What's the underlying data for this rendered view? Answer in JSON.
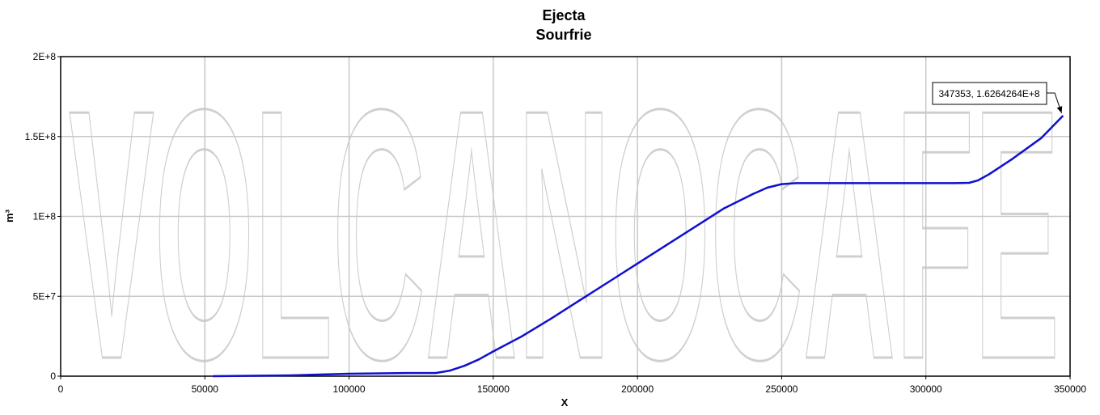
{
  "watermark": "VOLCANOCAFE",
  "chart_data": {
    "type": "line",
    "title": "Ejecta",
    "subtitle": "Sourfrie",
    "xlabel": "X",
    "ylabel": "m³",
    "xlim": [
      0,
      350000
    ],
    "ylim": [
      0,
      200000000
    ],
    "x_ticks": [
      0,
      50000,
      100000,
      150000,
      200000,
      250000,
      300000,
      350000
    ],
    "x_tick_labels": [
      "0",
      "50000",
      "100000",
      "150000",
      "200000",
      "250000",
      "300000",
      "350000"
    ],
    "y_ticks": [
      0,
      50000000,
      100000000,
      150000000,
      200000000
    ],
    "y_tick_labels": [
      "0",
      "5E+7",
      "1E+8",
      "1.5E+8",
      "2E+8"
    ],
    "grid": true,
    "series": [
      {
        "color": "#1010d0",
        "x": [
          53000,
          80000,
          100000,
          120000,
          130000,
          135000,
          140000,
          145000,
          150000,
          160000,
          170000,
          180000,
          190000,
          200000,
          210000,
          220000,
          230000,
          240000,
          245000,
          250000,
          255000,
          270000,
          290000,
          310000,
          315000,
          318000,
          322000,
          330000,
          340000,
          347353
        ],
        "y": [
          0,
          500000,
          1500000,
          2000000,
          2000000,
          3500000,
          6500000,
          10500000,
          15500000,
          25000000,
          36000000,
          47500000,
          59000000,
          70500000,
          82000000,
          93500000,
          105000000,
          114000000,
          118000000,
          120200000,
          120800000,
          120800000,
          120800000,
          120800000,
          121000000,
          122500000,
          126500000,
          136000000,
          149000000,
          162642640
        ]
      }
    ],
    "annotation": {
      "text": "347353, 1.6264264E+8",
      "x": 347353,
      "y": 162642640
    }
  }
}
